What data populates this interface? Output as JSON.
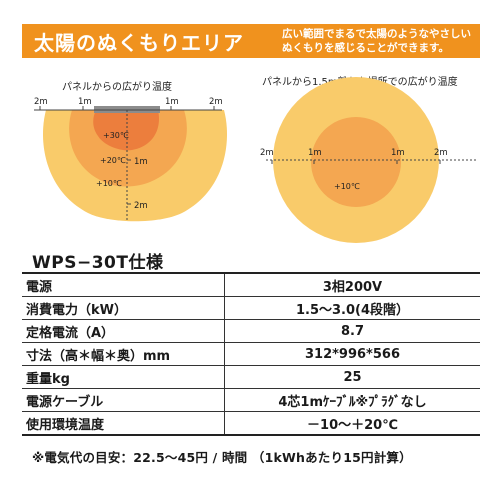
{
  "banner": {
    "title": "太陽のぬくもりエリア",
    "description_line1": "広い範囲でまるで太陽のようなやさしい",
    "description_line2": "ぬくもりを感じることができます。"
  },
  "diagram_left": {
    "caption": "パネルからの広がり温度",
    "axis_labels": {
      "left_2m": "2m",
      "left_1m": "1m",
      "right_1m": "1m",
      "right_2m": "2m"
    },
    "depth_labels": {
      "d1": "1m",
      "d2": "2m"
    },
    "temps": {
      "hot": "+30℃",
      "mid": "+20℃",
      "warm": "+10℃"
    },
    "colors": {
      "outer": "#f9cb6a",
      "mid": "#f4a751",
      "inner": "#ec7e3d",
      "panel": "#8c8c8c"
    }
  },
  "diagram_right": {
    "caption": "パネルから1.5m離れた場所での広がり温度",
    "axis_labels": {
      "left_2m": "2m",
      "left_1m": "1m",
      "right_1m": "1m",
      "right_2m": "2m"
    },
    "temps": {
      "warm": "+10℃"
    },
    "colors": {
      "outer": "#f9cb6a",
      "inner": "#f4a751"
    }
  },
  "spec": {
    "title": "WPS−30T仕様",
    "rows": [
      {
        "label": "電源",
        "value": "3相200V"
      },
      {
        "label": "消費電力（kW）",
        "value": "1.5～3.0(4段階）"
      },
      {
        "label": "定格電流（A）",
        "value": "8.7"
      },
      {
        "label": "寸法（高＊幅＊奥）mm",
        "value": "312*996*566"
      },
      {
        "label": "重量kg",
        "value": "25"
      },
      {
        "label": "電源ケーブル",
        "value": "4芯1mｹｰﾌﾞﾙ※ﾌﾟﾗｸﾞなし"
      },
      {
        "label": "使用環境温度",
        "value": "－10～＋20℃"
      }
    ],
    "footnote": "※電気代の目安：22.5～45円 / 時間 （1kWhあたり15円計算）"
  }
}
